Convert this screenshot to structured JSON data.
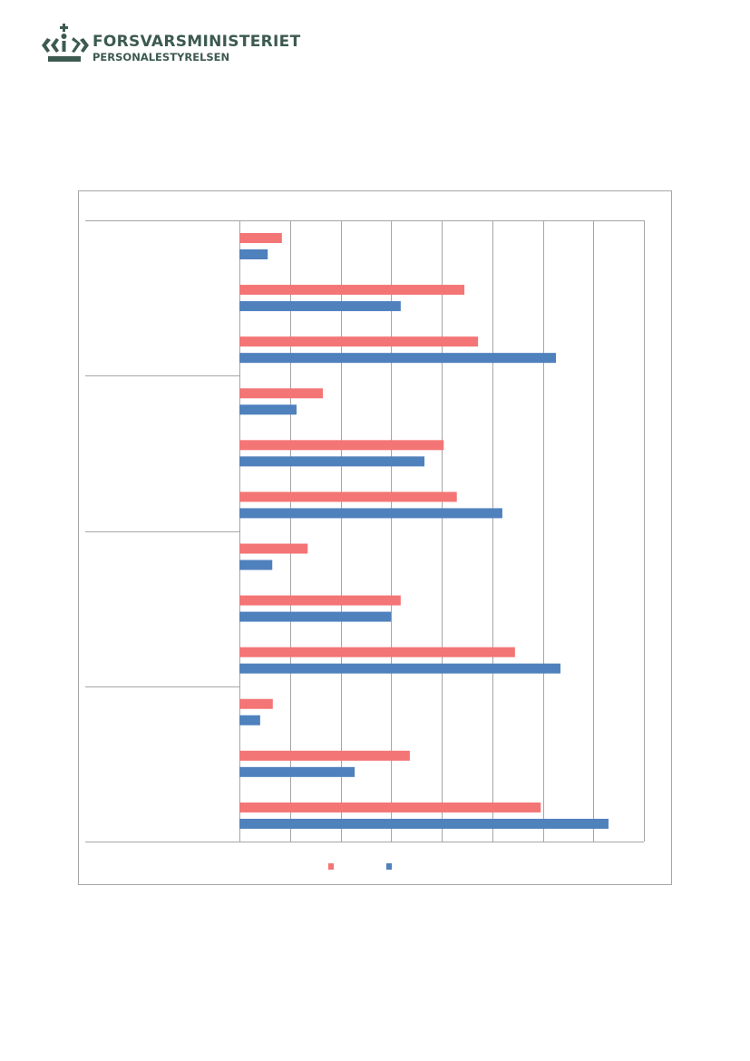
{
  "header": {
    "logo_line1": "FORSVARSMINISTERIET",
    "logo_line2": "PERSONALESTYRELSEN",
    "logo_color": "#3c5a50"
  },
  "chart_data": {
    "type": "bar",
    "orientation": "horizontal",
    "title": "",
    "xlabel": "",
    "ylabel": "",
    "grid": true,
    "xlim": [
      0,
      8
    ],
    "groups": 4,
    "categories": [
      "",
      "",
      "",
      "",
      "",
      "",
      "",
      "",
      "",
      "",
      "",
      ""
    ],
    "series": [
      {
        "color": "#f47575",
        "values": [
          0.84,
          4.45,
          4.72,
          1.65,
          4.04,
          4.3,
          1.35,
          3.19,
          5.45,
          0.66,
          3.37,
          5.96
        ]
      },
      {
        "color": "#4f81bd",
        "values": [
          0.56,
          3.19,
          6.26,
          1.13,
          3.66,
          5.2,
          0.65,
          3.0,
          6.35,
          0.41,
          2.28,
          7.3
        ]
      }
    ],
    "legend": {
      "position": "bottom",
      "entries": [
        "",
        ""
      ]
    }
  }
}
